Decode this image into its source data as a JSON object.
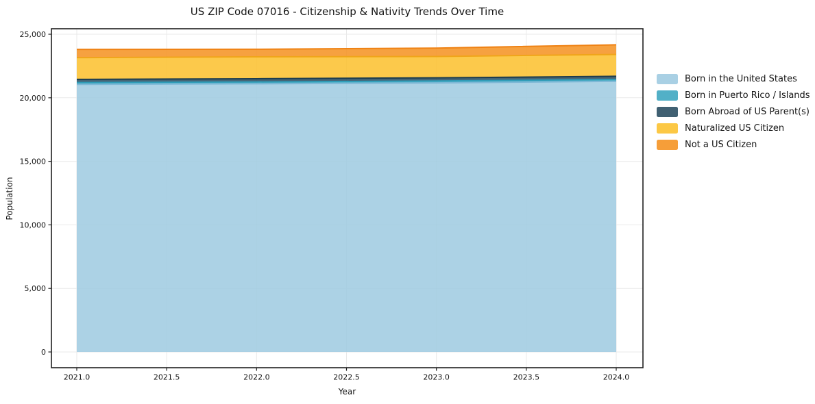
{
  "title": "US ZIP Code 07016 - Citizenship & Nativity Trends Over Time",
  "chart_data": {
    "type": "area",
    "stacked": true,
    "title": "US ZIP Code 07016 - Citizenship & Nativity Trends Over Time",
    "xlabel": "Year",
    "ylabel": "Population",
    "x": [
      2021,
      2022,
      2023,
      2024
    ],
    "x_ticks": [
      2021.0,
      2021.5,
      2022.0,
      2022.5,
      2023.0,
      2023.5,
      2024.0
    ],
    "x_ticklabels": [
      "2021.0",
      "2021.5",
      "2022.0",
      "2022.5",
      "2023.0",
      "2023.5",
      "2024.0"
    ],
    "y_ticks": [
      0,
      5000,
      10000,
      15000,
      20000,
      25000
    ],
    "y_ticklabels": [
      "0",
      "5,000",
      "10,000",
      "15,000",
      "20,000",
      "25,000"
    ],
    "xlim": [
      2020.86,
      2024.15
    ],
    "ylim": [
      -1240,
      25430
    ],
    "grid": true,
    "legend_position": "outside-right",
    "series": [
      {
        "name": "Born in the United States",
        "values": [
          21050,
          21100,
          21170,
          21290
        ],
        "color": "#9dcae0",
        "edge_color": "#7fb8d6"
      },
      {
        "name": "Born in Puerto Rico / Islands",
        "values": [
          150,
          150,
          150,
          150
        ],
        "color": "#3aa5bf",
        "edge_color": "#2f9cb8"
      },
      {
        "name": "Born Abroad of US Parent(s)",
        "values": [
          250,
          250,
          250,
          250
        ],
        "color": "#254a5e",
        "edge_color": "#1d3c4e"
      },
      {
        "name": "Naturalized US Citizen",
        "values": [
          1710,
          1720,
          1680,
          1720
        ],
        "color": "#fcc02b",
        "edge_color": "#f0a51a"
      },
      {
        "name": "Not a US Citizen",
        "values": [
          650,
          600,
          660,
          760
        ],
        "color": "#f5911e",
        "edge_color": "#ef8214"
      }
    ]
  },
  "colors": {
    "background": "#ffffff",
    "spine": "#1f1f1f",
    "grid": "#e9e9e9",
    "text": "#141414"
  }
}
